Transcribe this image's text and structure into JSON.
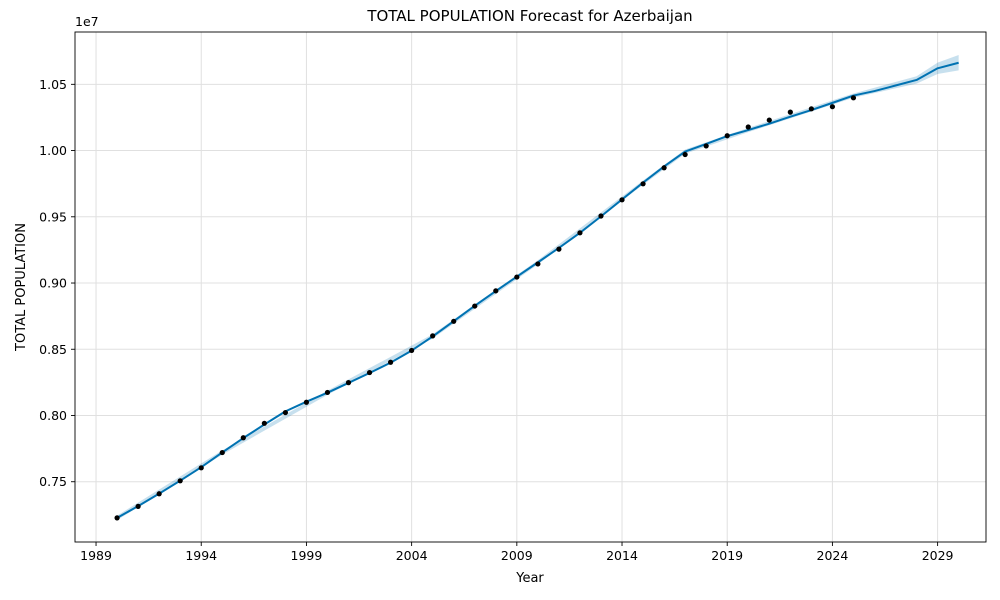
{
  "chart_data": {
    "type": "line",
    "title": "TOTAL POPULATION Forecast for Azerbaijan",
    "xlabel": "Year",
    "ylabel": "TOTAL POPULATION",
    "y_offset_label": "1e7",
    "xlim": [
      1988.0,
      2031.3
    ],
    "ylim": [
      0.7045,
      1.0895
    ],
    "x_ticks": [
      1989,
      1994,
      1999,
      2004,
      2009,
      2014,
      2019,
      2024,
      2029
    ],
    "y_ticks": [
      "0.75",
      "0.80",
      "0.85",
      "0.90",
      "0.95",
      "1.00",
      "1.05"
    ],
    "grid": true,
    "series": [
      {
        "kind": "actual",
        "color": "#000000",
        "points": [
          [
            1990,
            0.7227
          ],
          [
            1991,
            0.7314
          ],
          [
            1992,
            0.7409
          ],
          [
            1993,
            0.7507
          ],
          [
            1994,
            0.7605
          ],
          [
            1995,
            0.772
          ],
          [
            1996,
            0.7832
          ],
          [
            1997,
            0.7941
          ],
          [
            1998,
            0.8022
          ],
          [
            1999,
            0.81
          ],
          [
            2000,
            0.8174
          ],
          [
            2001,
            0.8248
          ],
          [
            2002,
            0.8324
          ],
          [
            2003,
            0.8402
          ],
          [
            2004,
            0.8491
          ],
          [
            2005,
            0.8601
          ],
          [
            2006,
            0.8711
          ],
          [
            2007,
            0.8826
          ],
          [
            2008,
            0.8941
          ],
          [
            2009,
            0.9045
          ],
          [
            2010,
            0.9144
          ],
          [
            2011,
            0.9256
          ],
          [
            2012,
            0.9379
          ],
          [
            2013,
            0.9506
          ],
          [
            2014,
            0.9628
          ],
          [
            2015,
            0.9749
          ],
          [
            2016,
            0.987
          ],
          [
            2017,
            0.997
          ],
          [
            2018,
            1.0035
          ],
          [
            2019,
            1.0112
          ],
          [
            2020,
            1.0178
          ],
          [
            2021,
            1.023
          ],
          [
            2022,
            1.029
          ],
          [
            2023,
            1.0315
          ],
          [
            2024,
            1.0331
          ],
          [
            2025,
            1.0398
          ]
        ]
      },
      {
        "kind": "forecast",
        "color": "#0072B2",
        "points": [
          [
            1990,
            0.7227
          ],
          [
            1991,
            0.7316
          ],
          [
            1992,
            0.741
          ],
          [
            1993,
            0.7508
          ],
          [
            1994,
            0.761
          ],
          [
            1995,
            0.7721
          ],
          [
            1996,
            0.783
          ],
          [
            1997,
            0.7932
          ],
          [
            1998,
            0.8031
          ],
          [
            1999,
            0.8104
          ],
          [
            2000,
            0.8172
          ],
          [
            2001,
            0.8246
          ],
          [
            2002,
            0.8321
          ],
          [
            2003,
            0.8399
          ],
          [
            2004,
            0.849
          ],
          [
            2005,
            0.8597
          ],
          [
            2006,
            0.8712
          ],
          [
            2007,
            0.8828
          ],
          [
            2008,
            0.8939
          ],
          [
            2009,
            0.9048
          ],
          [
            2010,
            0.9156
          ],
          [
            2011,
            0.9265
          ],
          [
            2012,
            0.9379
          ],
          [
            2013,
            0.9503
          ],
          [
            2014,
            0.9631
          ],
          [
            2015,
            0.9758
          ],
          [
            2016,
            0.988
          ],
          [
            2017,
            0.9992
          ],
          [
            2018,
            1.005
          ],
          [
            2019,
            1.0109
          ],
          [
            2020,
            1.0155
          ],
          [
            2021,
            1.0203
          ],
          [
            2022,
            1.0256
          ],
          [
            2023,
            1.0306
          ],
          [
            2024,
            1.036
          ],
          [
            2025,
            1.0415
          ],
          [
            2026,
            1.0449
          ],
          [
            2027,
            1.0491
          ],
          [
            2028,
            1.0533
          ],
          [
            2029,
            1.0621
          ],
          [
            2030,
            1.0663
          ]
        ]
      },
      {
        "kind": "uncertainty-band",
        "color": "#0072B2",
        "lower": [
          [
            1990,
            0.721
          ],
          [
            1995,
            0.7705
          ],
          [
            2000,
            0.8156
          ],
          [
            2005,
            0.8581
          ],
          [
            2010,
            0.914
          ],
          [
            2015,
            0.9742
          ],
          [
            2017,
            0.9976
          ],
          [
            2020,
            1.0139
          ],
          [
            2025,
            1.0399
          ],
          [
            2028,
            1.0505
          ],
          [
            2029,
            1.0578
          ],
          [
            2030,
            1.0605
          ]
        ],
        "upper": [
          [
            1990,
            0.7244
          ],
          [
            1995,
            0.7737
          ],
          [
            2000,
            0.8188
          ],
          [
            2005,
            0.8613
          ],
          [
            2010,
            0.9172
          ],
          [
            2015,
            0.9774
          ],
          [
            2017,
            1.0008
          ],
          [
            2020,
            1.0171
          ],
          [
            2025,
            1.0431
          ],
          [
            2028,
            1.0561
          ],
          [
            2029,
            1.0664
          ],
          [
            2030,
            1.0721
          ]
        ]
      }
    ]
  }
}
